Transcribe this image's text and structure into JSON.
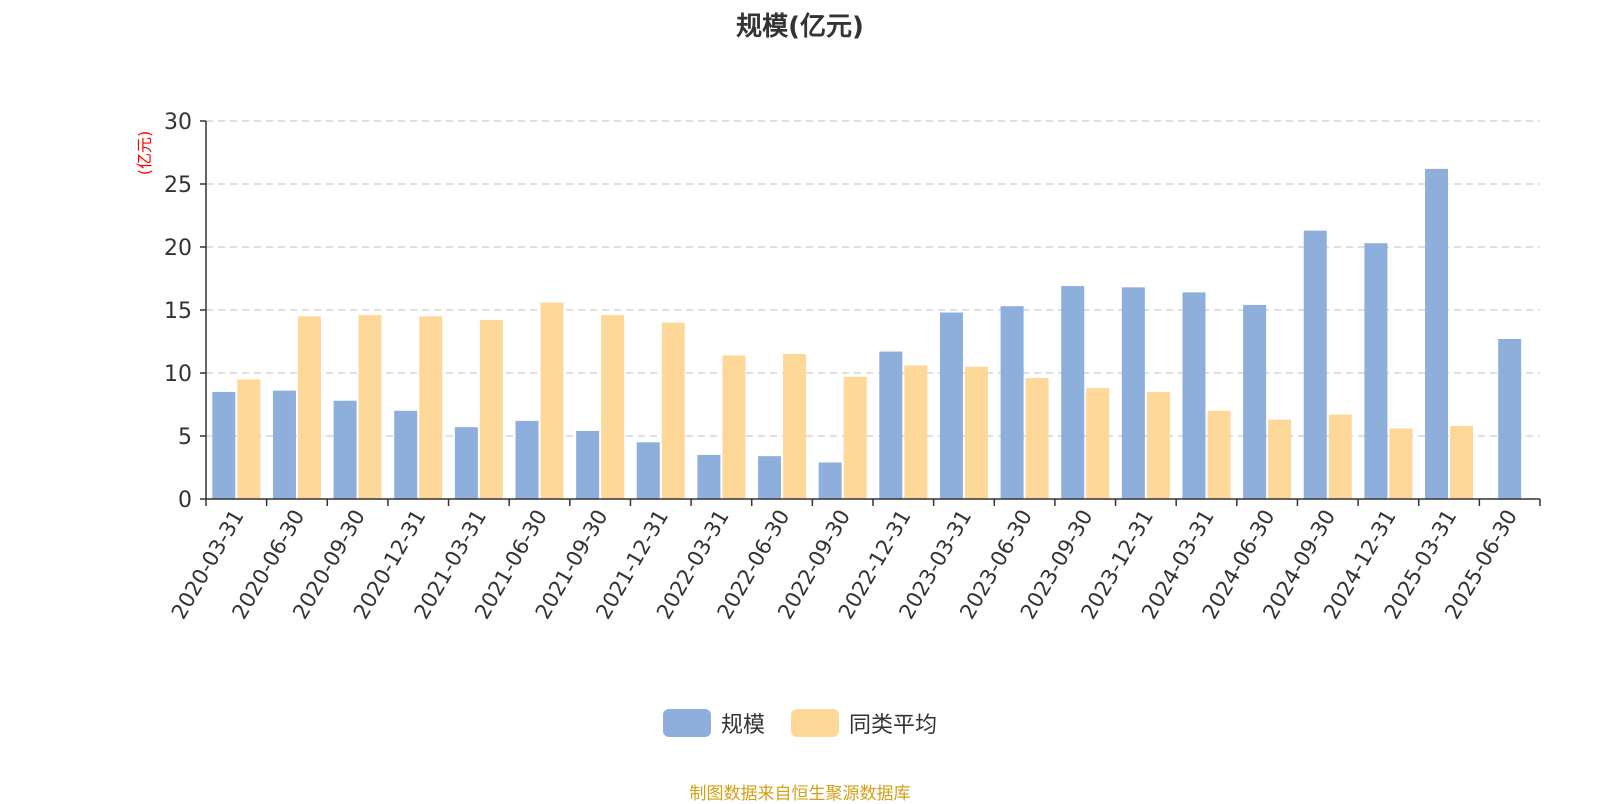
{
  "chart_data": {
    "type": "bar",
    "title": "规模(亿元)",
    "ylabel": "(亿元)",
    "xlabel": "",
    "ylim": [
      0,
      30
    ],
    "yticks": [
      0,
      5,
      10,
      15,
      20,
      25,
      30
    ],
    "grid": true,
    "legend_position": "bottom",
    "categories": [
      "2020-03-31",
      "2020-06-30",
      "2020-09-30",
      "2020-12-31",
      "2021-03-31",
      "2021-06-30",
      "2021-09-30",
      "2021-12-31",
      "2022-03-31",
      "2022-06-30",
      "2022-09-30",
      "2022-12-31",
      "2023-03-31",
      "2023-06-30",
      "2023-09-30",
      "2023-12-31",
      "2024-03-31",
      "2024-06-30",
      "2024-09-30",
      "2024-12-31",
      "2025-03-31",
      "2025-06-30"
    ],
    "series": [
      {
        "name": "规模",
        "color": "#8eaedb",
        "values": [
          8.5,
          8.6,
          7.8,
          7.0,
          5.7,
          6.2,
          5.4,
          4.5,
          3.5,
          3.4,
          2.9,
          11.7,
          14.8,
          15.3,
          16.9,
          16.8,
          16.4,
          15.4,
          21.3,
          20.3,
          26.2,
          12.7
        ]
      },
      {
        "name": "同类平均",
        "color": "#fdd899",
        "values": [
          9.5,
          14.5,
          14.6,
          14.5,
          14.2,
          15.6,
          14.6,
          14.0,
          11.4,
          11.5,
          9.7,
          10.6,
          10.5,
          9.6,
          8.8,
          8.5,
          7.0,
          6.3,
          6.7,
          5.6,
          5.8,
          null
        ]
      }
    ]
  },
  "footer": {
    "note": "制图数据来自恒生聚源数据库"
  }
}
